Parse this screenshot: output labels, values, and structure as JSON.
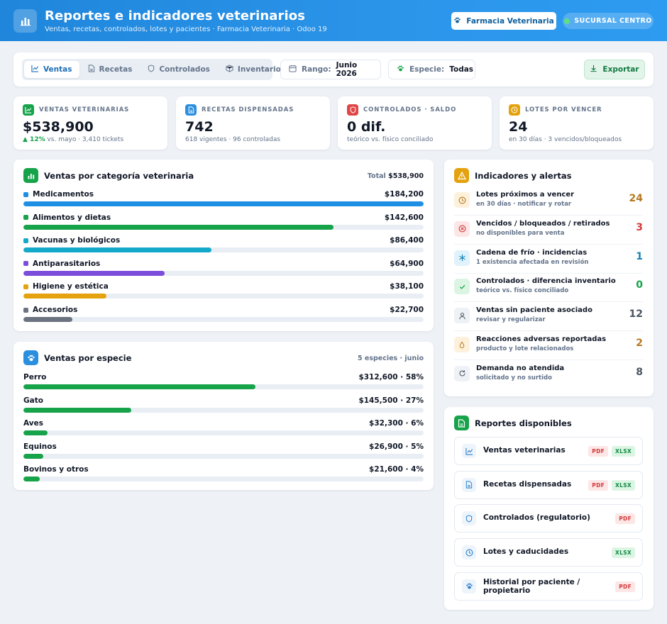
{
  "header": {
    "title": "Reportes e indicadores veterinarios",
    "subtitle": "Ventas, recetas, controlados, lotes y pacientes · Farmacia Veterinaria · Odoo 19",
    "pharmacy_button": "Farmacia Veterinaria",
    "branch_badge": "SUCURSAL CENTRO",
    "logo_icon": "bar-chart-icon"
  },
  "toolbar": {
    "tabs": [
      {
        "label": "Ventas",
        "icon": "line-chart-icon",
        "active": true
      },
      {
        "label": "Recetas",
        "icon": "document-icon",
        "active": false
      },
      {
        "label": "Controlados",
        "icon": "shield-icon",
        "active": false
      },
      {
        "label": "Inventario",
        "icon": "box-icon",
        "active": false
      }
    ],
    "range_label": "Rango:",
    "range_value": "Junio 2026",
    "species_label": "Especie:",
    "species_value": "Todas",
    "export_label": "Exportar"
  },
  "kpis": [
    {
      "label": "VENTAS VETERINARIAS",
      "value": "$538,900",
      "trend": "▲ 12%",
      "foot": " vs. mayo · 3,410 tickets",
      "color": "#16a34a",
      "icon": "line-chart-icon"
    },
    {
      "label": "RECETAS DISPENSADAS",
      "value": "742",
      "foot": "618 vigentes · 96 controladas",
      "color": "#2b8fe0",
      "icon": "document-icon"
    },
    {
      "label": "CONTROLADOS · SALDO",
      "value": "0 dif.",
      "foot": "teórico vs. físico conciliado",
      "color": "#e04646",
      "icon": "shield-icon"
    },
    {
      "label": "LOTES POR VENCER",
      "value": "24",
      "foot": "en 30 días · 3 vencidos/bloqueados",
      "color": "#e3a20e",
      "icon": "clock-icon"
    }
  ],
  "categories_panel": {
    "title": "Ventas por categoría veterinaria",
    "total_label": "Total",
    "total_value": "$538,900"
  },
  "species_panel": {
    "title": "Ventas por especie",
    "meta": "5 especies · junio"
  },
  "chart_data": [
    {
      "type": "bar",
      "title": "Ventas por categoría veterinaria",
      "categories": [
        "Medicamentos",
        "Alimentos y dietas",
        "Vacunas y biológicos",
        "Antiparasitarios",
        "Higiene y estética",
        "Accesorios"
      ],
      "values": [
        184200,
        142600,
        86400,
        64900,
        38100,
        22700
      ],
      "value_labels": [
        "$184,200",
        "$142,600",
        "$86,400",
        "$64,900",
        "$38,100",
        "$22,700"
      ],
      "colors": [
        "#1f8fe5",
        "#16a34a",
        "#14a9c9",
        "#7c4ddb",
        "#e3a20e",
        "#6b7280"
      ],
      "xlim": [
        0,
        184200
      ]
    },
    {
      "type": "bar",
      "title": "Ventas por especie",
      "categories": [
        "Perro",
        "Gato",
        "Aves",
        "Equinos",
        "Bovinos y otros"
      ],
      "values": [
        312600,
        145500,
        32300,
        26900,
        21600
      ],
      "value_labels": [
        "$312,600 · 58%",
        "$145,500 · 27%",
        "$32,300 · 6%",
        "$26,900 · 5%",
        "$21,600 · 4%"
      ],
      "percents": [
        58,
        27,
        6,
        5,
        4
      ],
      "color": "#16a34a"
    }
  ],
  "alerts_panel": {
    "title": "Indicadores y alertas",
    "items": [
      {
        "title": "Lotes próximos a vencer",
        "sub": "en 30 días · notificar y rotar",
        "count": "24",
        "color": "#b7791f",
        "bg": "#fdf1dc",
        "icon": "clock-icon"
      },
      {
        "title": "Vencidos / bloqueados / retirados",
        "sub": "no disponibles para venta",
        "count": "3",
        "color": "#d33a3a",
        "bg": "#fde6e6",
        "icon": "x-circle-icon"
      },
      {
        "title": "Cadena de frío · incidencias",
        "sub": "1 existencia afectada en revisión",
        "count": "1",
        "color": "#1483b5",
        "bg": "#e0f2fb",
        "icon": "snowflake-icon"
      },
      {
        "title": "Controlados · diferencia inventario",
        "sub": "teórico vs. físico conciliado",
        "count": "0",
        "color": "#16a34a",
        "bg": "#dcf5e3",
        "icon": "check-icon"
      },
      {
        "title": "Ventas sin paciente asociado",
        "sub": "revisar y regularizar",
        "count": "12",
        "color": "#4b5563",
        "bg": "#eef1f5",
        "icon": "user-icon"
      },
      {
        "title": "Reacciones adversas reportadas",
        "sub": "producto y lote relacionados",
        "count": "2",
        "color": "#b7791f",
        "bg": "#fdf1dc",
        "icon": "drop-icon"
      },
      {
        "title": "Demanda no atendida",
        "sub": "solicitado y no surtido",
        "count": "8",
        "color": "#4b5563",
        "bg": "#eef1f5",
        "icon": "refresh-icon"
      }
    ]
  },
  "reports_panel": {
    "title": "Reportes disponibles",
    "items": [
      {
        "label": "Ventas veterinarias",
        "icon": "line-chart-icon",
        "formats": [
          "PDF",
          "XLSX"
        ]
      },
      {
        "label": "Recetas dispensadas",
        "icon": "document-icon",
        "formats": [
          "PDF",
          "XLSX"
        ]
      },
      {
        "label": "Controlados (regulatorio)",
        "icon": "shield-icon",
        "formats": [
          "PDF"
        ]
      },
      {
        "label": "Lotes y caducidades",
        "icon": "clock-icon",
        "formats": [
          "XLSX"
        ]
      },
      {
        "label": "Historial por paciente / propietario",
        "icon": "paw-icon",
        "formats": [
          "PDF"
        ]
      }
    ]
  }
}
